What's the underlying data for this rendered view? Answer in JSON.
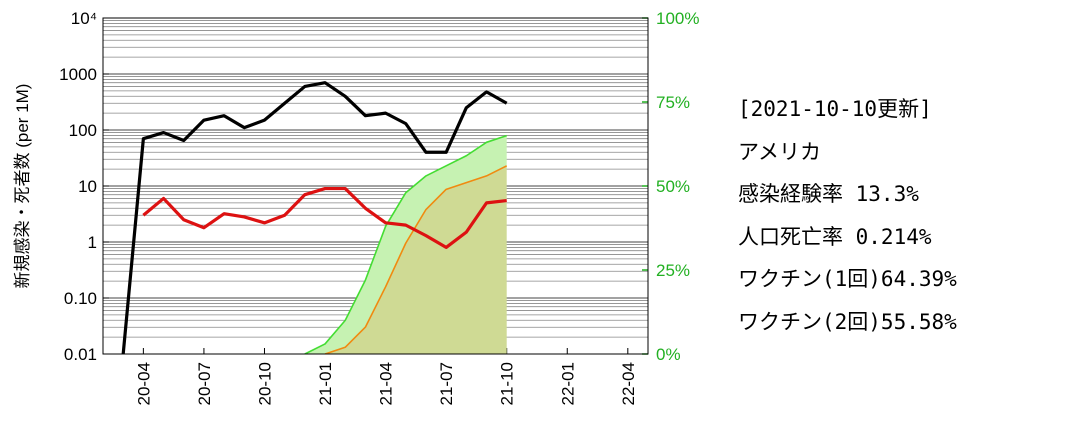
{
  "chart_data": {
    "type": "line",
    "y_label": "新規感染・死者数 (per 1M)",
    "log_scale": true,
    "grid": true,
    "x": [
      "20-03",
      "20-04",
      "20-05",
      "20-06",
      "20-07",
      "20-08",
      "20-09",
      "20-10",
      "20-11",
      "20-12",
      "21-01",
      "21-02",
      "21-03",
      "21-04",
      "21-05",
      "21-06",
      "21-07",
      "21-08",
      "21-09",
      "21-10"
    ],
    "xlim": [
      "20-02",
      "22-05"
    ],
    "xticks": [
      "20-04",
      "20-07",
      "20-10",
      "21-01",
      "21-04",
      "21-07",
      "21-10",
      "22-01",
      "22-04"
    ],
    "ylim": [
      0.01,
      10000
    ],
    "yticks": [
      0.01,
      {
        "value": 0.1,
        "label": "0.10"
      },
      1,
      10,
      100,
      1000,
      {
        "value": 10000,
        "label": "10⁴"
      }
    ],
    "y2lim": [
      0,
      100
    ],
    "y2ticks": [
      {
        "value": 0,
        "label": "0%"
      },
      {
        "value": 25,
        "label": "25%"
      },
      {
        "value": 50,
        "label": "50%"
      },
      {
        "value": 75,
        "label": "75%"
      },
      {
        "value": 100,
        "label": "100%"
      }
    ],
    "y2_color": "#22b022",
    "series": [
      {
        "color": "#000000",
        "values": [
          0.01,
          70,
          90,
          65,
          150,
          180,
          110,
          150,
          300,
          600,
          700,
          400,
          180,
          200,
          130,
          40,
          40,
          250,
          480,
          300
        ]
      },
      {
        "color": "#dd1111",
        "values": [
          null,
          3,
          6,
          2.5,
          1.8,
          3.2,
          2.8,
          2.2,
          3,
          7,
          9,
          9,
          4,
          2.2,
          2,
          1.3,
          0.8,
          1.5,
          5,
          5.5
        ]
      },
      {
        "color": "#44dd33",
        "fill": "#c6f2b2",
        "axis": "y2",
        "values": [
          null,
          null,
          null,
          null,
          null,
          null,
          null,
          null,
          null,
          0,
          3,
          10,
          22,
          38,
          48,
          53,
          56,
          59,
          63,
          65
        ]
      },
      {
        "color": "#f08a10",
        "fill": "#cfda94",
        "axis": "y2",
        "values": [
          null,
          null,
          null,
          null,
          null,
          null,
          null,
          null,
          null,
          null,
          0,
          2,
          8,
          20,
          33,
          43,
          49,
          51,
          53,
          56
        ]
      }
    ],
    "info": [
      "[2021-10-10更新]",
      "アメリカ",
      "感染経験率 13.3%",
      "人口死亡率 0.214%",
      "ワクチン(1回)64.39%",
      "ワクチン(2回)55.58%"
    ]
  }
}
